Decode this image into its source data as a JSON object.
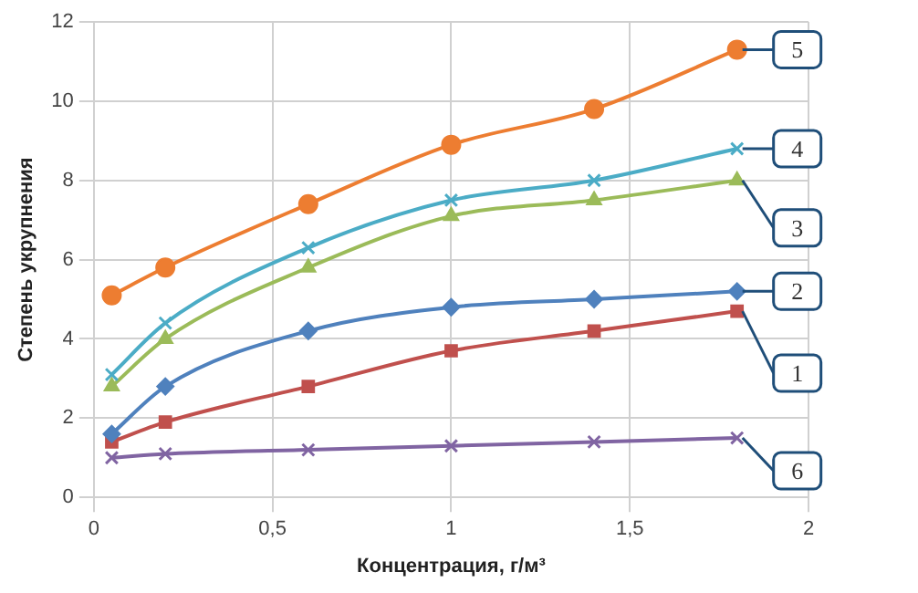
{
  "chart_data": {
    "type": "line",
    "xlabel": "Концентрация, г/м³",
    "ylabel": "Степень укрупнения",
    "x": [
      0.05,
      0.2,
      0.6,
      1.0,
      1.4,
      1.8
    ],
    "xlim": [
      0,
      2
    ],
    "xticks": [
      0,
      {
        "value": 0.5,
        "label": "0,5"
      },
      1,
      {
        "value": 1.5,
        "label": "1,5"
      },
      2
    ],
    "ylim": [
      0,
      12
    ],
    "yticks": [
      0,
      2,
      4,
      6,
      8,
      10,
      12
    ],
    "grid": true,
    "legend": false,
    "series": [
      {
        "name": "5",
        "color": "#ed7d31",
        "marker": "circle",
        "values": [
          5.1,
          5.8,
          7.4,
          8.9,
          9.8,
          11.3
        ]
      },
      {
        "name": "4",
        "color": "#4bacc6",
        "marker": "cross",
        "values": [
          3.1,
          4.4,
          6.3,
          7.5,
          8.0,
          8.8
        ]
      },
      {
        "name": "3",
        "color": "#9bbb59",
        "marker": "triangle",
        "values": [
          2.8,
          4.0,
          5.8,
          7.1,
          7.5,
          8.0
        ]
      },
      {
        "name": "2",
        "color": "#4f81bd",
        "marker": "diamond",
        "values": [
          1.6,
          2.8,
          4.2,
          4.8,
          5.0,
          5.2
        ]
      },
      {
        "name": "1",
        "color": "#c0504d",
        "marker": "square",
        "values": [
          1.4,
          1.9,
          2.8,
          3.7,
          4.2,
          4.7
        ]
      },
      {
        "name": "6",
        "color": "#8064a2",
        "marker": "cross",
        "values": [
          1.0,
          1.1,
          1.2,
          1.3,
          1.4,
          1.5
        ]
      }
    ]
  }
}
